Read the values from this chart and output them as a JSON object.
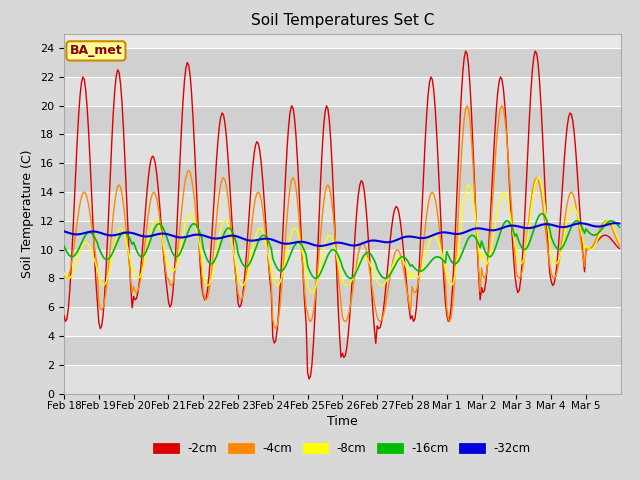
{
  "title": "Soil Temperatures Set C",
  "xlabel": "Time",
  "ylabel": "Soil Temperature (C)",
  "depths": [
    "-2cm",
    "-4cm",
    "-8cm",
    "-16cm",
    "-32cm"
  ],
  "colors": [
    "#dd0000",
    "#ff8800",
    "#ffff00",
    "#00bb00",
    "#0000dd"
  ],
  "linewidths": [
    1.0,
    1.0,
    1.0,
    1.2,
    1.5
  ],
  "xlabels": [
    "Feb 18",
    "Feb 19",
    "Feb 20",
    "Feb 21",
    "Feb 22",
    "Feb 23",
    "Feb 24",
    "Feb 25",
    "Feb 26",
    "Feb 27",
    "Feb 28",
    "Mar 1",
    "Mar 2",
    "Mar 3",
    "Mar 4",
    "Mar 5"
  ],
  "ylim": [
    0,
    25
  ],
  "yticks": [
    0,
    2,
    4,
    6,
    8,
    10,
    12,
    14,
    16,
    18,
    20,
    22,
    24
  ],
  "fig_bg": "#d8d8d8",
  "plot_bg": "#e8e8e8",
  "band_colors": [
    "#e0e0e0",
    "#d0d0d0"
  ],
  "grid_color": "#ffffff",
  "annotation_text": "BA_met",
  "annotation_bg": "#ffff99",
  "annotation_border": "#cc8800",
  "day_peaks_2cm": [
    22.0,
    22.5,
    16.5,
    23.0,
    19.5,
    17.5,
    20.0,
    20.0,
    14.8,
    13.0,
    22.0,
    23.8,
    22.0,
    23.8,
    19.5,
    11.0
  ],
  "day_troughs_2cm": [
    5.0,
    4.5,
    6.5,
    6.0,
    6.5,
    6.0,
    3.5,
    1.0,
    2.5,
    4.5,
    5.0,
    5.0,
    7.0,
    7.0,
    7.5,
    10.0
  ],
  "day_peaks_4cm": [
    14.0,
    14.5,
    14.0,
    15.5,
    15.0,
    14.0,
    15.0,
    14.5,
    10.5,
    10.0,
    14.0,
    20.0,
    20.0,
    15.0,
    14.0,
    12.0
  ],
  "day_troughs_4cm": [
    8.0,
    5.8,
    7.0,
    7.5,
    6.5,
    6.5,
    4.5,
    5.0,
    5.0,
    5.0,
    7.0,
    5.0,
    8.0,
    8.0,
    8.0,
    10.0
  ],
  "day_peaks_8cm": [
    10.5,
    11.5,
    12.0,
    12.5,
    12.0,
    11.5,
    11.5,
    11.0,
    9.5,
    9.5,
    11.0,
    14.5,
    14.0,
    15.0,
    13.0,
    12.0
  ],
  "day_troughs_8cm": [
    8.0,
    7.5,
    8.0,
    8.5,
    7.5,
    7.5,
    7.5,
    7.0,
    7.5,
    7.5,
    8.0,
    7.5,
    9.0,
    9.0,
    9.0,
    10.0
  ],
  "day_peaks_16cm": [
    11.2,
    11.2,
    11.8,
    11.8,
    11.5,
    11.0,
    10.5,
    10.0,
    9.8,
    9.5,
    9.5,
    11.0,
    12.0,
    12.5,
    12.0,
    12.0
  ],
  "day_troughs_16cm": [
    9.5,
    9.3,
    9.5,
    9.5,
    9.0,
    8.8,
    8.5,
    8.0,
    8.0,
    8.0,
    8.5,
    9.0,
    9.5,
    10.0,
    10.0,
    11.0
  ],
  "base_32cm": [
    11.2,
    11.15,
    11.1,
    11.05,
    11.0,
    10.95,
    10.9,
    10.85,
    10.7,
    10.55,
    10.4,
    10.35,
    10.4,
    10.55,
    10.75,
    10.95,
    11.15,
    11.35,
    11.5,
    11.6,
    11.65,
    11.7,
    11.72,
    11.72
  ],
  "n_days": 16,
  "pts_per_day": 24
}
